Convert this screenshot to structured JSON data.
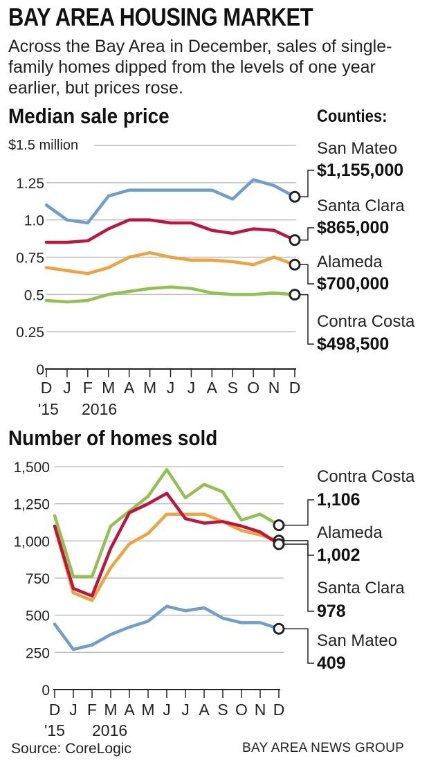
{
  "header": {
    "title": "BAY AREA HOUSING MARKET",
    "intro": "Across the Bay Area in December, sales of single-family homes dipped from the levels of one year earlier, but prices rose."
  },
  "legend_heading": "Counties:",
  "colors": {
    "San Mateo": "#6d9ecf",
    "Santa Clara": "#c0143c",
    "Alameda": "#f0a23c",
    "Contra Costa": "#8fc24e",
    "axis": "#222222",
    "grid": "#bdbdbd"
  },
  "footer": {
    "source": "Source: CoreLogic",
    "credit": "BAY AREA NEWS GROUP"
  },
  "chart_data": [
    {
      "type": "line",
      "title": "Median sale price",
      "ylabel": "$1.5 million",
      "x_tick_labels": [
        "D",
        "J",
        "F",
        "M",
        "A",
        "M",
        "J",
        "J",
        "A",
        "S",
        "O",
        "N",
        "D"
      ],
      "year_labels": [
        "'15",
        "2016"
      ],
      "y_ticks": [
        0,
        0.25,
        0.5,
        0.75,
        1.0,
        1.25,
        1.5
      ],
      "y_tick_labels": [
        "0",
        "0.25",
        "0.5",
        "0.75",
        "1.0",
        "1.25",
        ""
      ],
      "ylim": [
        0,
        1.5
      ],
      "grid": true,
      "series": [
        {
          "name": "San Mateo",
          "values": [
            1.1,
            1.0,
            0.98,
            1.16,
            1.2,
            1.2,
            1.2,
            1.2,
            1.2,
            1.14,
            1.27,
            1.23,
            1.155
          ],
          "end_label": "$1,155,000"
        },
        {
          "name": "Santa Clara",
          "values": [
            0.85,
            0.85,
            0.86,
            0.94,
            1.0,
            1.0,
            0.98,
            0.98,
            0.93,
            0.91,
            0.94,
            0.93,
            0.865
          ],
          "end_label": "$865,000"
        },
        {
          "name": "Alameda",
          "values": [
            0.68,
            0.66,
            0.64,
            0.68,
            0.75,
            0.78,
            0.75,
            0.73,
            0.73,
            0.72,
            0.7,
            0.75,
            0.7
          ],
          "end_label": "$700,000"
        },
        {
          "name": "Contra Costa",
          "values": [
            0.46,
            0.45,
            0.46,
            0.5,
            0.52,
            0.54,
            0.55,
            0.54,
            0.51,
            0.5,
            0.5,
            0.51,
            0.4985
          ],
          "end_label": "$498,500"
        }
      ]
    },
    {
      "type": "line",
      "title": "Number of homes sold",
      "x_tick_labels": [
        "D",
        "J",
        "F",
        "M",
        "A",
        "M",
        "J",
        "J",
        "A",
        "S",
        "O",
        "N",
        "D"
      ],
      "year_labels": [
        "'15",
        "2016"
      ],
      "y_ticks": [
        0,
        250,
        500,
        750,
        1000,
        1250,
        1500
      ],
      "y_tick_labels": [
        "0",
        "250",
        "500",
        "750",
        "1,000",
        "1,250",
        "1,500"
      ],
      "ylim": [
        0,
        1500
      ],
      "grid": true,
      "series": [
        {
          "name": "Contra Costa",
          "values": [
            1170,
            760,
            760,
            1100,
            1200,
            1300,
            1480,
            1290,
            1380,
            1330,
            1140,
            1180,
            1106
          ],
          "end_label": "1,106"
        },
        {
          "name": "Alameda",
          "values": [
            1100,
            650,
            600,
            820,
            980,
            1050,
            1180,
            1180,
            1180,
            1130,
            1070,
            1040,
            1002
          ],
          "end_label": "1,002"
        },
        {
          "name": "Santa Clara",
          "values": [
            1100,
            680,
            630,
            950,
            1190,
            1250,
            1320,
            1150,
            1120,
            1130,
            1100,
            1060,
            978
          ],
          "end_label": "978"
        },
        {
          "name": "San Mateo",
          "values": [
            440,
            270,
            300,
            370,
            420,
            460,
            560,
            530,
            550,
            480,
            450,
            450,
            409
          ],
          "end_label": "409"
        }
      ]
    }
  ]
}
